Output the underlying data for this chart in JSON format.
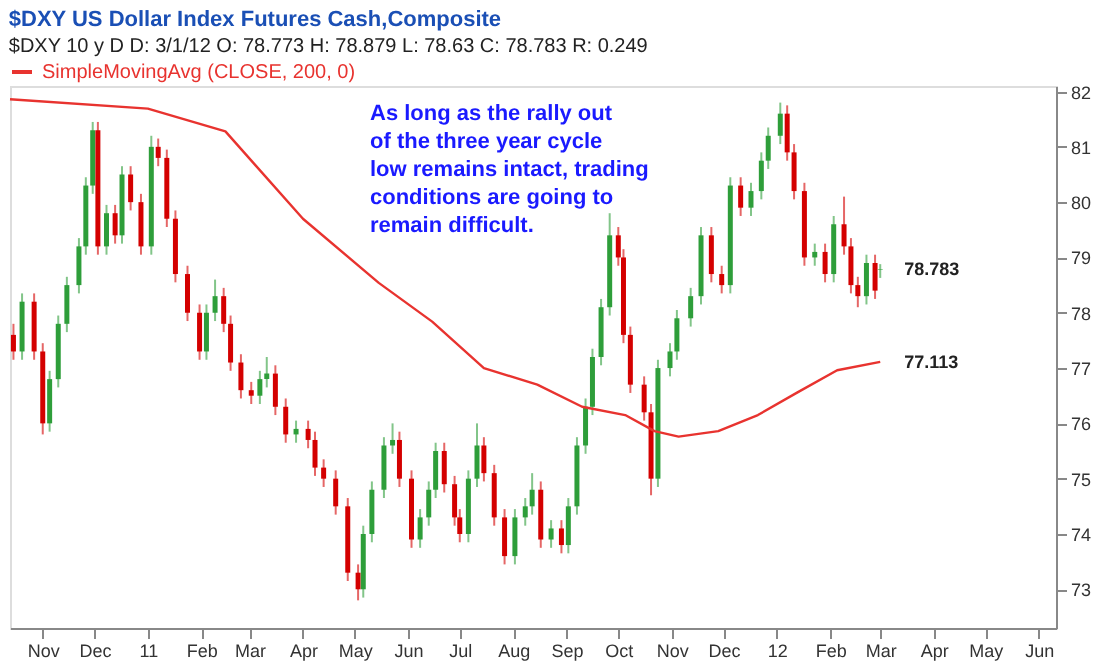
{
  "chart_data": {
    "type": "candlestick",
    "title": "$DXY  US Dollar Index Futures Cash,Composite",
    "subtitle": "$DXY 10 y D   D: 3/1/12   O: 78.773   H: 78.879   L: 78.63   C: 78.783   R: 0.249",
    "x": [
      "2010-10-15",
      "2010-10-20",
      "2010-10-27",
      "2010-11-01",
      "2010-11-05",
      "2010-11-10",
      "2010-11-15",
      "2010-11-22",
      "2010-11-26",
      "2010-11-30",
      "2010-12-03",
      "2010-12-08",
      "2010-12-13",
      "2010-12-17",
      "2010-12-22",
      "2010-12-28",
      "2011-01-03",
      "2011-01-07",
      "2011-01-12",
      "2011-01-17",
      "2011-01-24",
      "2011-01-31",
      "2011-02-04",
      "2011-02-09",
      "2011-02-14",
      "2011-02-18",
      "2011-02-24",
      "2011-03-02",
      "2011-03-07",
      "2011-03-11",
      "2011-03-16",
      "2011-03-22",
      "2011-03-28",
      "2011-04-04",
      "2011-04-08",
      "2011-04-13",
      "2011-04-20",
      "2011-04-27",
      "2011-05-03",
      "2011-05-06",
      "2011-05-11",
      "2011-05-18",
      "2011-05-23",
      "2011-05-27",
      "2011-06-03",
      "2011-06-08",
      "2011-06-13",
      "2011-06-17",
      "2011-06-22",
      "2011-06-28",
      "2011-07-01",
      "2011-07-06",
      "2011-07-11",
      "2011-07-15",
      "2011-07-21",
      "2011-07-27",
      "2011-08-02",
      "2011-08-08",
      "2011-08-12",
      "2011-08-17",
      "2011-08-23",
      "2011-08-29",
      "2011-09-02",
      "2011-09-07",
      "2011-09-12",
      "2011-09-16",
      "2011-09-21",
      "2011-09-26",
      "2011-10-01",
      "2011-10-04",
      "2011-10-08",
      "2011-10-16",
      "2011-10-20",
      "2011-10-24",
      "2011-10-31",
      "2011-11-04",
      "2011-11-12",
      "2011-11-18",
      "2011-11-24",
      "2011-11-30",
      "2011-12-05",
      "2011-12-11",
      "2011-12-17",
      "2011-12-23",
      "2011-12-27",
      "2012-01-03",
      "2012-01-07",
      "2012-01-11",
      "2012-01-17",
      "2012-01-23",
      "2012-01-29",
      "2012-02-03",
      "2012-02-09",
      "2012-02-13",
      "2012-02-17",
      "2012-02-22",
      "2012-02-27",
      "2012-03-01"
    ],
    "ohlc": [
      [
        77.6,
        77.8,
        77.15,
        77.3
      ],
      [
        77.3,
        78.35,
        77.15,
        78.2
      ],
      [
        78.2,
        78.35,
        77.15,
        77.3
      ],
      [
        77.3,
        77.45,
        75.8,
        76.0
      ],
      [
        76.0,
        76.95,
        75.85,
        76.8
      ],
      [
        76.8,
        77.95,
        76.65,
        77.8
      ],
      [
        77.8,
        78.65,
        77.65,
        78.5
      ],
      [
        78.5,
        79.35,
        78.35,
        79.2
      ],
      [
        79.2,
        80.45,
        79.05,
        80.3
      ],
      [
        80.3,
        81.45,
        80.15,
        81.3
      ],
      [
        81.3,
        81.45,
        79.05,
        79.2
      ],
      [
        79.2,
        79.95,
        79.05,
        79.8
      ],
      [
        79.8,
        79.95,
        79.25,
        79.4
      ],
      [
        79.4,
        80.65,
        79.25,
        80.5
      ],
      [
        80.5,
        80.65,
        79.85,
        80.0
      ],
      [
        80.0,
        80.15,
        79.05,
        79.2
      ],
      [
        79.2,
        81.2,
        79.05,
        81.0
      ],
      [
        81.0,
        81.15,
        80.65,
        80.8
      ],
      [
        80.8,
        80.95,
        79.55,
        79.7
      ],
      [
        79.7,
        79.85,
        78.55,
        78.7
      ],
      [
        78.7,
        78.85,
        77.85,
        78.0
      ],
      [
        78.0,
        78.15,
        77.15,
        77.3
      ],
      [
        77.3,
        78.15,
        77.15,
        78.0
      ],
      [
        78.0,
        78.6,
        77.85,
        78.3
      ],
      [
        78.3,
        78.45,
        77.65,
        77.8
      ],
      [
        77.8,
        77.95,
        76.95,
        77.1
      ],
      [
        77.1,
        77.25,
        76.45,
        76.6
      ],
      [
        76.6,
        76.75,
        76.35,
        76.5
      ],
      [
        76.5,
        76.95,
        76.35,
        76.8
      ],
      [
        76.8,
        77.2,
        76.65,
        76.9
      ],
      [
        76.9,
        77.05,
        76.15,
        76.3
      ],
      [
        76.3,
        76.45,
        75.65,
        75.8
      ],
      [
        75.8,
        76.05,
        75.65,
        75.9
      ],
      [
        75.9,
        76.05,
        75.55,
        75.7
      ],
      [
        75.7,
        75.85,
        75.05,
        75.2
      ],
      [
        75.2,
        75.35,
        74.85,
        75.0
      ],
      [
        75.0,
        75.15,
        74.35,
        74.5
      ],
      [
        74.5,
        74.65,
        73.15,
        73.3
      ],
      [
        73.3,
        73.45,
        72.8,
        73.0
      ],
      [
        73.0,
        74.15,
        72.85,
        74.0
      ],
      [
        74.0,
        74.95,
        73.85,
        74.8
      ],
      [
        74.8,
        75.75,
        74.65,
        75.6
      ],
      [
        75.6,
        76.0,
        75.45,
        75.7
      ],
      [
        75.7,
        75.85,
        74.85,
        75.0
      ],
      [
        75.0,
        75.15,
        73.75,
        73.9
      ],
      [
        73.9,
        74.45,
        73.75,
        74.3
      ],
      [
        74.3,
        74.95,
        74.15,
        74.8
      ],
      [
        74.8,
        75.65,
        74.65,
        75.5
      ],
      [
        75.5,
        75.65,
        74.75,
        74.9
      ],
      [
        74.9,
        75.05,
        74.15,
        74.3
      ],
      [
        74.3,
        74.45,
        73.85,
        74.0
      ],
      [
        74.0,
        75.15,
        73.85,
        75.0
      ],
      [
        75.0,
        76.0,
        74.85,
        75.6
      ],
      [
        75.6,
        75.75,
        74.95,
        75.1
      ],
      [
        75.1,
        75.25,
        74.15,
        74.3
      ],
      [
        74.3,
        74.45,
        73.45,
        73.6
      ],
      [
        73.6,
        74.45,
        73.45,
        74.3
      ],
      [
        74.3,
        74.65,
        74.15,
        74.5
      ],
      [
        74.5,
        75.1,
        74.35,
        74.8
      ],
      [
        74.8,
        74.95,
        73.75,
        73.9
      ],
      [
        73.9,
        74.25,
        73.75,
        74.1
      ],
      [
        74.1,
        74.25,
        73.65,
        73.8
      ],
      [
        73.8,
        74.65,
        73.65,
        74.5
      ],
      [
        74.5,
        75.75,
        74.35,
        75.6
      ],
      [
        75.6,
        76.45,
        75.45,
        76.3
      ],
      [
        76.3,
        77.35,
        76.15,
        77.2
      ],
      [
        77.2,
        78.25,
        77.05,
        78.1
      ],
      [
        78.1,
        79.8,
        77.95,
        79.4
      ],
      [
        79.4,
        79.55,
        78.85,
        79.0
      ],
      [
        79.0,
        79.15,
        77.45,
        77.6
      ],
      [
        77.6,
        77.75,
        76.55,
        76.7
      ],
      [
        76.7,
        76.85,
        76.05,
        76.2
      ],
      [
        76.2,
        76.35,
        74.7,
        75.0
      ],
      [
        75.0,
        77.15,
        74.85,
        77.0
      ],
      [
        77.0,
        77.45,
        76.85,
        77.3
      ],
      [
        77.3,
        78.05,
        77.15,
        77.9
      ],
      [
        77.9,
        78.45,
        77.75,
        78.3
      ],
      [
        78.3,
        79.55,
        78.15,
        79.4
      ],
      [
        79.4,
        79.55,
        78.55,
        78.7
      ],
      [
        78.7,
        78.85,
        78.35,
        78.5
      ],
      [
        78.5,
        80.45,
        78.35,
        80.3
      ],
      [
        80.3,
        80.45,
        79.75,
        79.9
      ],
      [
        79.9,
        80.35,
        79.75,
        80.2
      ],
      [
        80.2,
        80.9,
        80.05,
        80.75
      ],
      [
        80.75,
        81.35,
        80.6,
        81.2
      ],
      [
        81.2,
        81.8,
        81.05,
        81.6
      ],
      [
        81.6,
        81.75,
        80.75,
        80.9
      ],
      [
        80.9,
        81.05,
        80.05,
        80.2
      ],
      [
        80.2,
        80.35,
        78.85,
        79.0
      ],
      [
        79.0,
        79.25,
        78.85,
        79.1
      ],
      [
        79.1,
        79.25,
        78.55,
        78.7
      ],
      [
        78.7,
        79.75,
        78.55,
        79.6
      ],
      [
        79.6,
        80.1,
        79.05,
        79.2
      ],
      [
        79.2,
        79.35,
        78.35,
        78.5
      ],
      [
        78.5,
        78.65,
        78.1,
        78.3
      ],
      [
        78.3,
        79.05,
        78.15,
        78.9
      ],
      [
        78.9,
        79.05,
        78.25,
        78.4
      ],
      [
        78.773,
        78.879,
        78.63,
        78.783
      ]
    ],
    "series": [
      {
        "name": "SimpleMovingAvg (CLOSE, 200, 0)",
        "type": "line",
        "color": "#e8332f",
        "x": [
          "2010-10-13",
          "2011-01-01",
          "2011-02-15",
          "2011-04-01",
          "2011-05-15",
          "2011-06-15",
          "2011-07-15",
          "2011-08-15",
          "2011-09-10",
          "2011-10-05",
          "2011-10-22",
          "2011-11-05",
          "2011-11-28",
          "2011-12-21",
          "2012-01-13",
          "2012-02-05",
          "2012-03-01"
        ],
        "values": [
          81.86,
          81.69,
          81.28,
          79.7,
          78.54,
          77.84,
          77.0,
          76.7,
          76.3,
          76.15,
          75.86,
          75.76,
          75.86,
          76.15,
          76.56,
          76.96,
          77.113
        ]
      }
    ],
    "xlim": [
      "2010-10-13",
      "2012-06-11"
    ],
    "xticks": [
      {
        "value": "2010-11-01",
        "label": "Nov"
      },
      {
        "value": "2010-12-01",
        "label": "Dec"
      },
      {
        "value": "2011-01-01",
        "label": "11"
      },
      {
        "value": "2011-02-01",
        "label": "Feb"
      },
      {
        "value": "2011-03-01",
        "label": "Mar"
      },
      {
        "value": "2011-04-01",
        "label": "Apr"
      },
      {
        "value": "2011-05-01",
        "label": "May"
      },
      {
        "value": "2011-06-01",
        "label": "Jun"
      },
      {
        "value": "2011-07-01",
        "label": "Jul"
      },
      {
        "value": "2011-08-01",
        "label": "Aug"
      },
      {
        "value": "2011-09-01",
        "label": "Sep"
      },
      {
        "value": "2011-10-01",
        "label": "Oct"
      },
      {
        "value": "2011-11-01",
        "label": "Nov"
      },
      {
        "value": "2011-12-01",
        "label": "Dec"
      },
      {
        "value": "2012-01-01",
        "label": "12"
      },
      {
        "value": "2012-02-01",
        "label": "Feb"
      },
      {
        "value": "2012-03-01",
        "label": "Mar"
      },
      {
        "value": "2012-04-01",
        "label": "Apr"
      },
      {
        "value": "2012-05-01",
        "label": "May"
      },
      {
        "value": "2012-06-01",
        "label": "Jun"
      }
    ],
    "ylim": [
      72.3,
      82.1
    ],
    "yticks": [
      73,
      74,
      75,
      76,
      77,
      78,
      79,
      80,
      81,
      82
    ],
    "annotations": [
      "As long as the rally out\nof the three year cycle\nlow remains intact, trading\nconditions are going to\nremain difficult.",
      {
        "text": "78.783",
        "x": "2012-03-01",
        "y": 78.783
      },
      {
        "text": "77.113",
        "x": "2012-03-01",
        "y": 77.113
      }
    ],
    "grid": false,
    "legend": "top"
  }
}
